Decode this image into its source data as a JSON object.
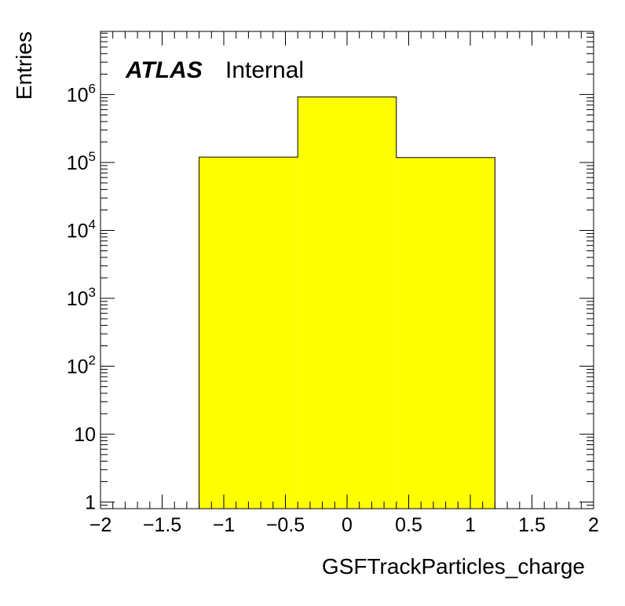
{
  "chart_data": {
    "type": "bar",
    "histogram": true,
    "xlabel": "GSFTrackParticles_charge",
    "ylabel": "Entries",
    "xlim": [
      -2,
      2
    ],
    "ylim": [
      0.8,
      8500000
    ],
    "yscale": "log",
    "grid": false,
    "bins": [
      {
        "x_low": -1.2,
        "x_high": -0.4,
        "value": 120000
      },
      {
        "x_low": -0.4,
        "x_high": 0.4,
        "value": 920000
      },
      {
        "x_low": 0.4,
        "x_high": 1.2,
        "value": 118000
      }
    ],
    "fill_color": "#ffff00",
    "line_color": "#000000",
    "x_ticks": [
      {
        "value": -2,
        "label": "−2"
      },
      {
        "value": -1.5,
        "label": "−1.5"
      },
      {
        "value": -1,
        "label": "−1"
      },
      {
        "value": -0.5,
        "label": "−0.5"
      },
      {
        "value": 0,
        "label": "0"
      },
      {
        "value": 0.5,
        "label": "0.5"
      },
      {
        "value": 1,
        "label": "1"
      },
      {
        "value": 1.5,
        "label": "1.5"
      },
      {
        "value": 2,
        "label": "2"
      }
    ],
    "y_ticks": [
      {
        "value": 1,
        "base": "1",
        "exp": ""
      },
      {
        "value": 10,
        "base": "10",
        "exp": ""
      },
      {
        "value": 100,
        "base": "10",
        "exp": "2"
      },
      {
        "value": 1000,
        "base": "10",
        "exp": "3"
      },
      {
        "value": 10000,
        "base": "10",
        "exp": "4"
      },
      {
        "value": 100000,
        "base": "10",
        "exp": "5"
      },
      {
        "value": 1000000,
        "base": "10",
        "exp": "6"
      }
    ],
    "label": {
      "experiment": "ATLAS",
      "status": "Internal"
    }
  }
}
